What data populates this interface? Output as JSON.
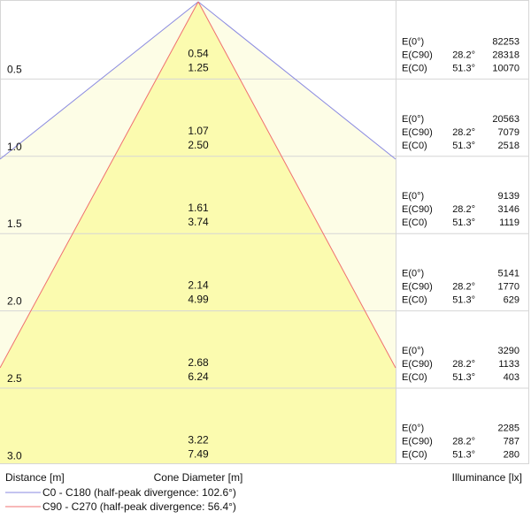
{
  "headers": {
    "distance": "Distance [m]",
    "cone_diameter": "Cone Diameter [m]",
    "illuminance": "Illuminance [lx]"
  },
  "legend": [
    {
      "label": "C0 - C180 (half-peak divergence: 102.6°)",
      "color": "#8a8ae0"
    },
    {
      "label": "C90 - C270 (half-peak divergence: 56.4°)",
      "color": "#f07070"
    }
  ],
  "colors": {
    "fill_c0": "#fdfde6",
    "fill_c90": "#fbfbaf",
    "grid": "#d6d6d6",
    "line_c0": "#8a8ae0",
    "line_c90": "#f07070"
  },
  "rows": [
    {
      "distance": "0.5",
      "d1": "0.54",
      "d2": "1.25",
      "lux": [
        {
          "label": "E(0°)",
          "angle": "",
          "value": "82253"
        },
        {
          "label": "E(C90)",
          "angle": "28.2°",
          "value": "28318"
        },
        {
          "label": "E(C0)",
          "angle": "51.3°",
          "value": "10070"
        }
      ]
    },
    {
      "distance": "1.0",
      "d1": "1.07",
      "d2": "2.50",
      "lux": [
        {
          "label": "E(0°)",
          "angle": "",
          "value": "20563"
        },
        {
          "label": "E(C90)",
          "angle": "28.2°",
          "value": "7079"
        },
        {
          "label": "E(C0)",
          "angle": "51.3°",
          "value": "2518"
        }
      ]
    },
    {
      "distance": "1.5",
      "d1": "1.61",
      "d2": "3.74",
      "lux": [
        {
          "label": "E(0°)",
          "angle": "",
          "value": "9139"
        },
        {
          "label": "E(C90)",
          "angle": "28.2°",
          "value": "3146"
        },
        {
          "label": "E(C0)",
          "angle": "51.3°",
          "value": "1119"
        }
      ]
    },
    {
      "distance": "2.0",
      "d1": "2.14",
      "d2": "4.99",
      "lux": [
        {
          "label": "E(0°)",
          "angle": "",
          "value": "5141"
        },
        {
          "label": "E(C90)",
          "angle": "28.2°",
          "value": "1770"
        },
        {
          "label": "E(C0)",
          "angle": "51.3°",
          "value": "629"
        }
      ]
    },
    {
      "distance": "2.5",
      "d1": "2.68",
      "d2": "6.24",
      "lux": [
        {
          "label": "E(0°)",
          "angle": "",
          "value": "3290"
        },
        {
          "label": "E(C90)",
          "angle": "28.2°",
          "value": "1133"
        },
        {
          "label": "E(C0)",
          "angle": "51.3°",
          "value": "403"
        }
      ]
    },
    {
      "distance": "3.0",
      "d1": "3.22",
      "d2": "7.49",
      "lux": [
        {
          "label": "E(0°)",
          "angle": "",
          "value": "2285"
        },
        {
          "label": "E(C90)",
          "angle": "28.2°",
          "value": "787"
        },
        {
          "label": "E(C0)",
          "angle": "51.3°",
          "value": "280"
        }
      ]
    }
  ]
}
